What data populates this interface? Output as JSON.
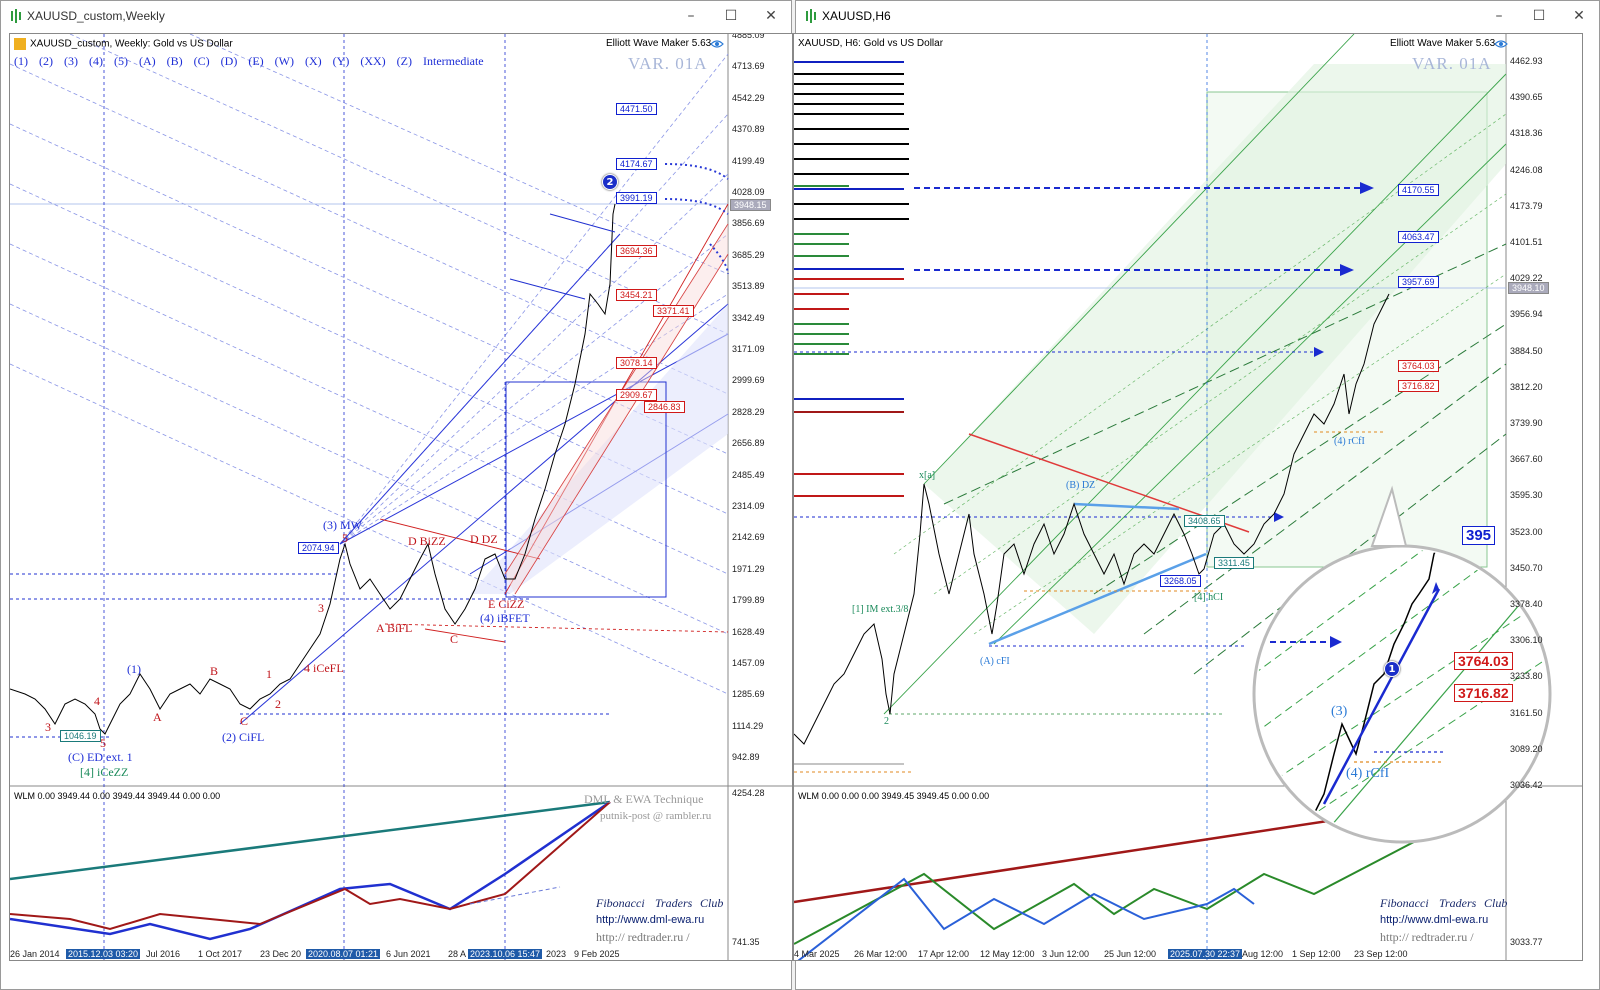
{
  "left_window": {
    "title": "XAUUSD_custom,Weekly",
    "header": "XAUUSD_custom, Weekly:  Gold vs US Dollar",
    "ewm": "Elliott Wave Maker 5.63",
    "variant": "VAR. 01A",
    "wave_tags": [
      "(1)",
      "(2)",
      "(3)",
      "(4)",
      "(5)",
      "(A)",
      "(B)",
      "(C)",
      "(D)",
      "(E)",
      "(W)",
      "(X)",
      "(Y)",
      "(XX)",
      "(Z)",
      "Intermediate"
    ],
    "price_axis": [
      "4885.09",
      "4713.69",
      "4542.29",
      "4370.89",
      "4199.49",
      "4028.09",
      "3856.69",
      "3685.29",
      "3513.89",
      "3342.49",
      "3171.09",
      "2999.69",
      "2828.29",
      "2656.89",
      "2485.49",
      "2314.09",
      "2142.69",
      "1971.29",
      "1799.89",
      "1628.49",
      "1457.09",
      "1285.69",
      "1114.29",
      "942.89"
    ],
    "current_price": "3948.15",
    "indicator_axis": [
      "4254.28",
      "741.35"
    ],
    "date_axis": [
      "26 Jan 2014",
      "2015.12.03 03:20",
      "Jul 2016",
      "1 Oct 2017",
      "23 Dec 20",
      "2020.08.07 01:21",
      "6 Jun 2021",
      "28 A",
      "2023.10.06 15:47",
      "2023",
      "9 Feb 2025"
    ],
    "wlm": "WLM 0.00 3949.44 0.00 3949.44 3949.44 0.00 0.00",
    "dml": "DML & EWA Technique",
    "email": "putnik-post @ rambler.ru",
    "fib_club": [
      "Fibonacci",
      "Traders",
      "Club"
    ],
    "site1": "http://www.dml-ewa.ru",
    "site2": "http:// redtrader.ru /",
    "targets_blue": [
      "4471.50",
      "4174.67",
      "3991.19"
    ],
    "targets_red": [
      "3694.36",
      "3454.21",
      "3371.41",
      "3078.14",
      "2909.67",
      "2846.83"
    ],
    "price_boxes": [
      "2074.94",
      "1046.19"
    ],
    "wave_labels": {
      "w3mw": "(3) MW",
      "ced": "(C) ED ext. 1",
      "ice": "[4] iCeZZ",
      "w2": "(2) CiFL",
      "w1": "(1)",
      "w4": "4 iCeFL",
      "abifl": "A BiFL",
      "w4ibfet": "(4) iBFET",
      "ecizz": "E CiZZ",
      "dbzz": "D BiZZ",
      "ddz": "D DZ",
      "c": "C",
      "b": "B",
      "a": "A",
      "n1": "1",
      "n2": "2",
      "n3": "3",
      "n4": "4",
      "n5": "5",
      "badge": "2"
    }
  },
  "right_window": {
    "title": "XAUUSD,H6",
    "header": "XAUUSD, H6:  Gold vs US Dollar",
    "ewm": "Elliott Wave Maker 5.63",
    "variant": "VAR. 01A",
    "price_axis": [
      "4462.93",
      "4390.65",
      "4318.36",
      "4246.08",
      "4173.79",
      "4101.51",
      "4029.22",
      "3956.94",
      "3884.50",
      "3812.20",
      "3739.90",
      "3667.60",
      "3595.30",
      "3523.00",
      "3450.70",
      "3378.40",
      "3306.10",
      "3233.80",
      "3161.50",
      "3089.20",
      "3036.42"
    ],
    "current_price": "3948.10",
    "indicator_axis": [
      "3033.77"
    ],
    "date_axis": [
      "4 Mar 2025",
      "26 Mar 12:00",
      "17 Apr 12:00",
      "12 May 12:00",
      "3 Jun 12:00",
      "25 Jun 12:00",
      "2025.07.30 22:37",
      "Aug 12:00",
      "1 Sep 12:00",
      "23 Sep 12:00"
    ],
    "wlm": "WLM 0.00 0.00 0.00 3949.45 3949.45 0.00 0.00",
    "fib_club": [
      "Fibonacci",
      "Traders",
      "Club"
    ],
    "site1": "http://www.dml-ewa.ru",
    "site2": "http:// redtrader.ru /",
    "targets_blue": [
      "4170.55",
      "4063.47",
      "3957.69"
    ],
    "targets_red": [
      "3764.03",
      "3716.82"
    ],
    "price_boxes": [
      "3268.05",
      "3311.45",
      "3408.65"
    ],
    "wave_labels": {
      "a_cfi": "(A) cFI",
      "im": "[1] IM ext.3/8",
      "w4": "[4] hCI",
      "b_dz": "(B) DZ",
      "fcfi": "(4) rCfI",
      "xa": "x[a]",
      "n2": "2"
    },
    "zoom": {
      "target_top": "395",
      "t1": "3764.03",
      "t2": "3716.82",
      "label": "(4) rCfI",
      "wave3": "(3)",
      "badge": "1"
    }
  }
}
